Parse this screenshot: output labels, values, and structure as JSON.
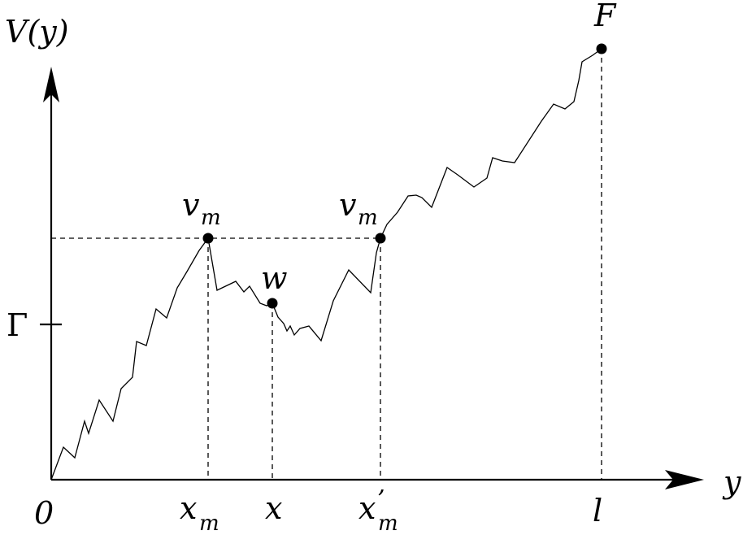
{
  "axes": {
    "y_axis_label": "V(y)",
    "x_axis_label": "y",
    "origin_label": "0",
    "gamma_label": "Γ"
  },
  "x_ticks": {
    "xm": {
      "base": "x",
      "sub": "m"
    },
    "x": "x",
    "xm_prime": {
      "base": "x",
      "sup": "’",
      "sub": "m"
    },
    "l": "l"
  },
  "points": {
    "vm_left": {
      "base": "v",
      "sub": "m"
    },
    "w": "w",
    "vm_right": {
      "base": "v",
      "sub": "m"
    },
    "F": "F"
  }
}
